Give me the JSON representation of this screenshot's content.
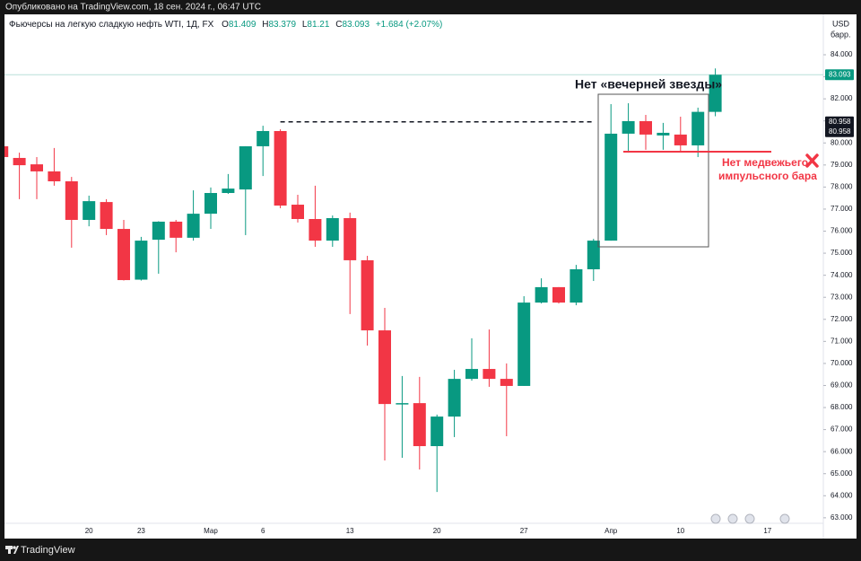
{
  "published": "Опубликовано на TradingView.com, 18 сен. 2024 г., 06:47 UTC",
  "brand": "TradingView",
  "chart_data": {
    "type": "candlestick",
    "title": "Фьючерсы на легкую сладкую нефть WTI, 1Д, FX",
    "ohlc_labels": [
      "O",
      "H",
      "L",
      "C"
    ],
    "change": "+1.684 (+2.07%)",
    "currency": "USD",
    "unit": "барр.",
    "up_color": "#089981",
    "down_color": "#f23645",
    "level": 80.958,
    "annotations": [
      "Нет «вечерней звезды»",
      "Нет медвежьего",
      "импульсного бара"
    ],
    "categories": [
      null,
      null,
      null,
      null,
      null,
      "20",
      null,
      null,
      "23",
      null,
      null,
      null,
      "Мар",
      null,
      null,
      "6",
      null,
      null,
      null,
      null,
      "13",
      null,
      null,
      null,
      null,
      "20",
      null,
      null,
      null,
      null,
      "27",
      null,
      null,
      null,
      null,
      "Апр",
      null,
      null,
      null,
      "10",
      null,
      null,
      null,
      null,
      "17"
    ],
    "open": [
      79.85,
      79.32,
      79.03,
      78.71,
      78.26,
      76.51,
      77.32,
      76.1,
      73.8,
      75.61,
      76.43,
      75.7,
      76.79,
      77.73,
      77.89,
      79.85,
      80.54,
      77.2,
      76.55,
      75.57,
      76.59,
      74.68,
      71.5,
      68.16,
      68.2,
      66.25,
      67.59,
      69.3,
      69.75,
      69.3,
      68.98,
      72.76,
      73.46,
      72.76,
      74.27,
      75.57,
      80.42,
      80.99,
      80.34,
      80.38,
      79.89,
      81.409,
      null,
      null,
      null
    ],
    "high": [
      80.17,
      79.56,
      79.36,
      79.77,
      78.46,
      77.61,
      77.45,
      76.51,
      75.74,
      76.45,
      76.51,
      77.85,
      77.98,
      78.59,
      79.85,
      80.78,
      80.62,
      77.65,
      78.06,
      76.71,
      76.84,
      74.88,
      72.52,
      69.43,
      69.39,
      67.68,
      69.71,
      71.14,
      71.54,
      70.0,
      73.05,
      73.86,
      73.46,
      74.47,
      75.65,
      81.76,
      81.8,
      81.27,
      80.91,
      81.19,
      81.6,
      83.379,
      null,
      null,
      null
    ],
    "low": [
      78.75,
      77.45,
      77.45,
      78.06,
      75.25,
      76.22,
      75.82,
      73.76,
      73.76,
      74.07,
      75.04,
      75.57,
      76.1,
      77.69,
      75.82,
      78.5,
      77.04,
      76.39,
      75.29,
      75.29,
      72.24,
      70.81,
      65.6,
      65.72,
      65.19,
      64.17,
      66.66,
      69.22,
      68.94,
      66.7,
      68.98,
      72.72,
      72.72,
      72.64,
      73.74,
      75.57,
      79.56,
      79.69,
      79.69,
      79.64,
      79.36,
      81.21,
      null,
      null,
      null
    ],
    "close": [
      79.36,
      78.99,
      78.71,
      78.26,
      76.51,
      77.36,
      76.1,
      73.78,
      75.57,
      76.43,
      75.7,
      76.79,
      77.73,
      77.93,
      79.85,
      80.54,
      77.16,
      76.55,
      75.57,
      76.59,
      74.68,
      71.5,
      68.16,
      68.2,
      66.25,
      67.59,
      69.3,
      69.75,
      69.3,
      68.98,
      72.76,
      73.46,
      72.76,
      74.27,
      75.57,
      80.42,
      80.99,
      80.38,
      80.46,
      79.89,
      81.41,
      83.093,
      null,
      null,
      null
    ],
    "ylim": [
      62.75,
      85.75
    ],
    "yticks": [
      {
        "value": 63,
        "label": "63.000"
      },
      {
        "value": 64,
        "label": "64.000"
      },
      {
        "value": 65,
        "label": "65.000"
      },
      {
        "value": 66,
        "label": "66.000"
      },
      {
        "value": 67,
        "label": "67.000"
      },
      {
        "value": 68,
        "label": "68.000"
      },
      {
        "value": 69,
        "label": "69.000"
      },
      {
        "value": 70,
        "label": "70.000"
      },
      {
        "value": 71,
        "label": "71.000"
      },
      {
        "value": 72,
        "label": "72.000"
      },
      {
        "value": 73,
        "label": "73.000"
      },
      {
        "value": 74,
        "label": "74.000"
      },
      {
        "value": 75,
        "label": "75.000"
      },
      {
        "value": 76,
        "label": "76.000"
      },
      {
        "value": 77,
        "label": "77.000"
      },
      {
        "value": 78,
        "label": "78.000"
      },
      {
        "value": 79,
        "label": "79.000"
      },
      {
        "value": 80,
        "label": "80.000"
      },
      {
        "value": 81,
        "label": "81.000"
      },
      {
        "value": 82,
        "label": "82.000"
      },
      {
        "value": 83,
        "label": "83.000"
      },
      {
        "value": 84,
        "label": "84.000"
      }
    ],
    "grid": false
  }
}
